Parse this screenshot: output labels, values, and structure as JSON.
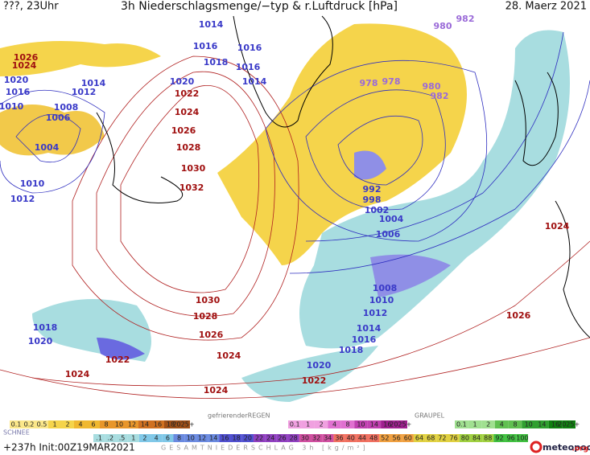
{
  "header": {
    "left": "???, 23Uhr",
    "title": "3h Niederschlagsmenge/−typ & r.Luftdruck [hPa]",
    "date": "28. Maerz 2021"
  },
  "isobar_labels": [
    "1026",
    "1024",
    "1020",
    "1016",
    "1010",
    "1014",
    "1012",
    "1008",
    "1006",
    "1004",
    "1010",
    "1012",
    "1014",
    "1016",
    "1018",
    "1016",
    "1016",
    "1014",
    "1020",
    "1022",
    "1024",
    "1026",
    "1028",
    "1030",
    "1032",
    "982",
    "980",
    "978",
    "978",
    "980",
    "982",
    "992",
    "998",
    "1002",
    "1004",
    "1006",
    "1008",
    "1010",
    "1012",
    "1014",
    "1016",
    "1018",
    "1020",
    "1022",
    "1024",
    "1026",
    "1030",
    "1028",
    "1026",
    "1024",
    "1024",
    "1024",
    "1022",
    "1018",
    "1020"
  ],
  "legend": {
    "snow_label": "SCHNEE",
    "snow_scale": [
      "0.1",
      "0.2",
      "0.5",
      "1",
      "2",
      "4",
      "6",
      "8",
      "10",
      "12",
      "14",
      "16",
      "18",
      "2025+"
    ],
    "freezing_label": "gefrierenderREGEN",
    "freezing_scale": [
      "0.1",
      "1",
      "2",
      "4",
      "8",
      "10",
      "14",
      "16",
      "2025+"
    ],
    "graupel_label": "GRAUPEL",
    "graupel_scale": [
      "0.1",
      "1",
      "2",
      "4",
      "8",
      "10",
      "14",
      "16",
      "2025+"
    ],
    "total_label": "GESAMTNIEDERSCHLAG 3h [kg/m²]",
    "total_scale": [
      ".1",
      ".2",
      ".5",
      "1",
      "2",
      "4",
      "6",
      "8",
      "10",
      "12",
      "14",
      "16",
      "18",
      "20",
      "22",
      "24",
      "26",
      "28",
      "30",
      "32",
      "34",
      "36",
      "40",
      "44",
      "48",
      "52",
      "56",
      "60",
      "64",
      "68",
      "72",
      "76",
      "80",
      "84",
      "88",
      "92",
      "96",
      "100"
    ]
  },
  "footer": {
    "run": "+237h Init:00Z19MAR2021",
    "brand": "meteopool",
    "domain": ".org"
  }
}
